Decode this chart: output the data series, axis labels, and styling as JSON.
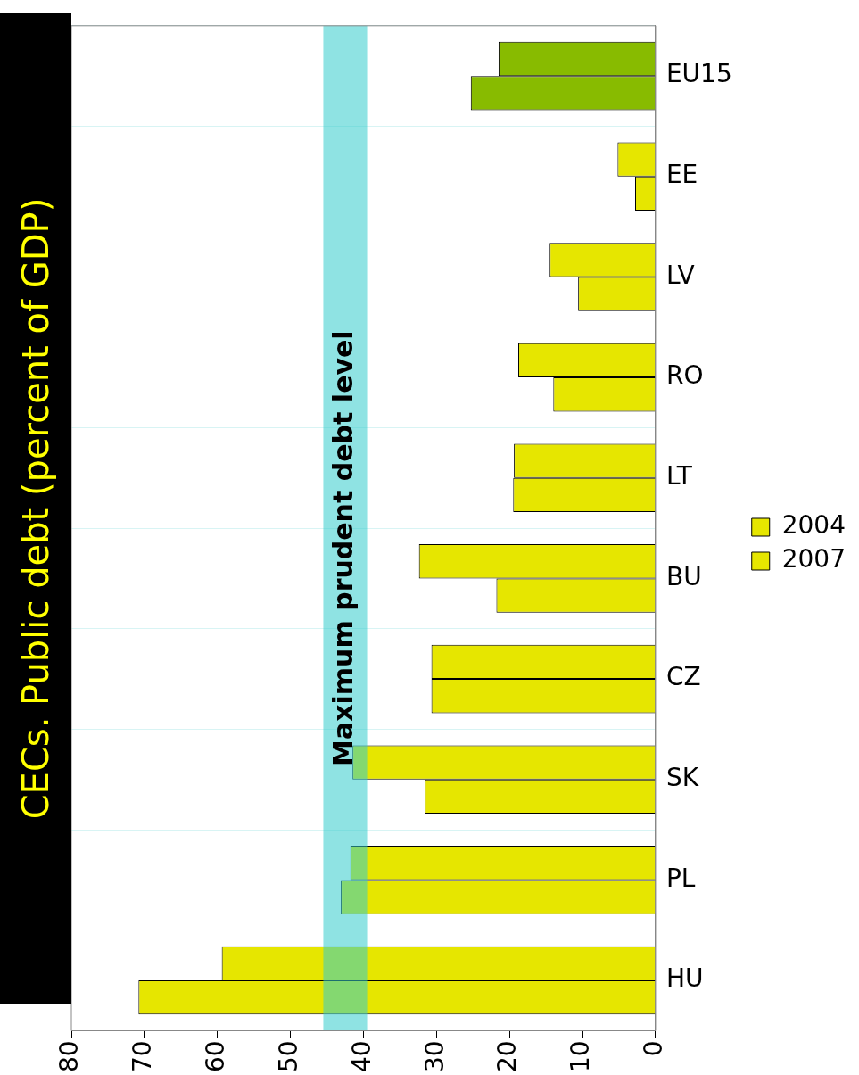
{
  "chart_data": {
    "type": "bar",
    "orientation": "horizontal",
    "title": "CECs. Public debt (percent of GDP)",
    "categories": [
      "EU15",
      "EE",
      "LV",
      "RO",
      "LT",
      "BU",
      "CZ",
      "SK",
      "PL",
      "HU"
    ],
    "series": [
      {
        "name": "2004",
        "color": "#e6e600",
        "colors": [
          "#88bb00",
          "#e6e600",
          "#e6e600",
          "#e6e600",
          "#e6e600",
          "#e6e600",
          "#e6e600",
          "#e6e600",
          "#e6e600",
          "#e6e600"
        ],
        "values": [
          21.5,
          5.2,
          14.5,
          18.8,
          19.4,
          32.4,
          30.7,
          41.5,
          41.8,
          59.4
        ]
      },
      {
        "name": "2007",
        "color": "#e6e600",
        "colors": [
          "#88bb00",
          "#e6e600",
          "#e6e600",
          "#e6e600",
          "#e6e600",
          "#e6e600",
          "#e6e600",
          "#e6e600",
          "#e6e600",
          "#e6e600"
        ],
        "values": [
          25.3,
          2.8,
          10.6,
          14.0,
          19.5,
          21.8,
          30.7,
          31.6,
          43.1,
          70.8
        ]
      }
    ],
    "xlim": [
      80,
      0
    ],
    "xticks": [
      0,
      10,
      20,
      30,
      40,
      50,
      60,
      70,
      80
    ],
    "grid": "y",
    "legend": "right",
    "bands": [
      {
        "axis": "x",
        "from": 39.5,
        "to": 45.5,
        "label": "Maximum prudent debt level",
        "color": "#33cccc"
      }
    ]
  }
}
